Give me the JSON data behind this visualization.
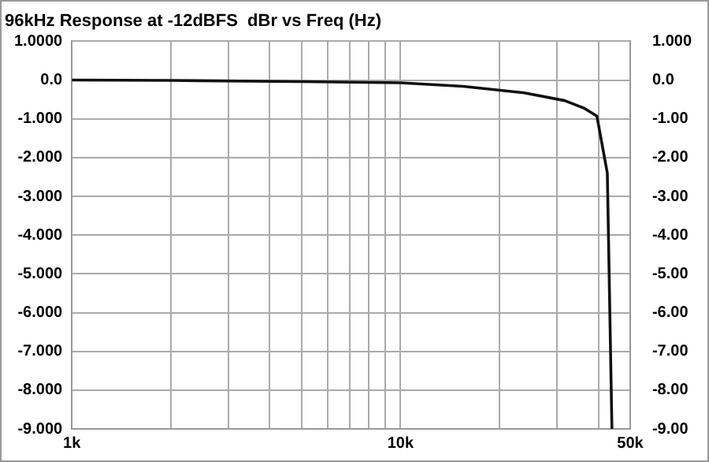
{
  "chart_data": {
    "type": "line",
    "title": "96kHz Response at -12dBFS  dBr vs Freq (Hz)",
    "x": [
      1000,
      2000,
      5000,
      10000,
      15500,
      23800,
      31600,
      36300,
      39600,
      42600,
      44000
    ],
    "series": [
      {
        "color": "#111111",
        "values": [
          0,
          -0.01,
          -0.04,
          -0.07,
          -0.16,
          -0.33,
          -0.53,
          -0.73,
          -0.93,
          -2.4,
          -9
        ]
      }
    ],
    "log": "x",
    "xlim": [
      1000,
      50000
    ],
    "xticks": [
      {
        "value": 1000,
        "label": "1k"
      },
      {
        "value": 2000,
        "label": null
      },
      {
        "value": 3000,
        "label": null
      },
      {
        "value": 4000,
        "label": null
      },
      {
        "value": 5000,
        "label": null
      },
      {
        "value": 6000,
        "label": null
      },
      {
        "value": 7000,
        "label": null
      },
      {
        "value": 8000,
        "label": null
      },
      {
        "value": 9000,
        "label": null
      },
      {
        "value": 10000,
        "label": "10k"
      },
      {
        "value": 20000,
        "label": null
      },
      {
        "value": 30000,
        "label": null
      },
      {
        "value": 40000,
        "label": null
      },
      {
        "value": 50000,
        "label": "50k"
      }
    ],
    "ylim": [
      -9,
      1
    ],
    "yticks": [
      {
        "value": 1,
        "label": "1.0000"
      },
      {
        "value": 0,
        "label": "0.0"
      },
      {
        "value": -1,
        "label": "-1.000"
      },
      {
        "value": -2,
        "label": "-2.000"
      },
      {
        "value": -3,
        "label": "-3.000"
      },
      {
        "value": -4,
        "label": "-4.000"
      },
      {
        "value": -5,
        "label": "-5.000"
      },
      {
        "value": -6,
        "label": "-6.000"
      },
      {
        "value": -7,
        "label": "-7.000"
      },
      {
        "value": -8,
        "label": "-8.000"
      },
      {
        "value": -9,
        "label": "-9.000"
      }
    ],
    "y2lim": [
      -9,
      1
    ],
    "y2ticks": [
      {
        "value": 1,
        "label": "1.000"
      },
      {
        "value": 0,
        "label": "0.0"
      },
      {
        "value": -1,
        "label": "-1.00"
      },
      {
        "value": -2,
        "label": "-2.00"
      },
      {
        "value": -3,
        "label": "-3.00"
      },
      {
        "value": -4,
        "label": "-4.00"
      },
      {
        "value": -5,
        "label": "-5.00"
      },
      {
        "value": -6,
        "label": "-6.00"
      },
      {
        "value": -7,
        "label": "-7.00"
      },
      {
        "value": -8,
        "label": "-8.00"
      },
      {
        "value": -9,
        "label": "-9.00"
      }
    ],
    "grid": true,
    "marker": "none",
    "line_style": "solid"
  }
}
